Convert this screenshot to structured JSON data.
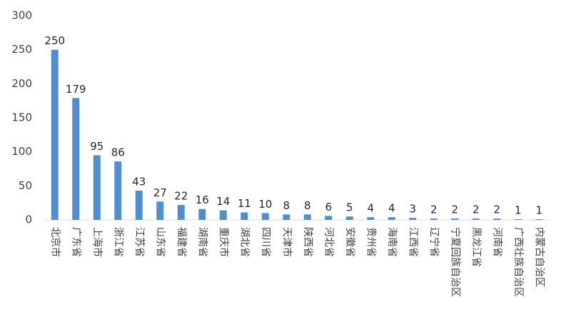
{
  "chart_data": {
    "type": "bar",
    "categories": [
      "北京市",
      "广东省",
      "上海市",
      "浙江省",
      "江苏省",
      "山东省",
      "福建省",
      "湖南省",
      "重庆市",
      "湖北省",
      "四川省",
      "天津市",
      "陕西省",
      "河北省",
      "安徽省",
      "贵州省",
      "海南省",
      "江西省",
      "辽宁省",
      "宁夏回族自治区",
      "黑龙江省",
      "河南省",
      "广西壮族自治区",
      "内蒙古自治区"
    ],
    "values": [
      250,
      179,
      95,
      86,
      43,
      27,
      22,
      16,
      14,
      11,
      10,
      8,
      8,
      6,
      5,
      4,
      4,
      3,
      2,
      2,
      2,
      2,
      1,
      1
    ],
    "color": "#4f8fd0",
    "ylim": [
      0,
      300
    ],
    "yticks": [
      0,
      50,
      100,
      150,
      200,
      250,
      300
    ],
    "grid": false
  }
}
